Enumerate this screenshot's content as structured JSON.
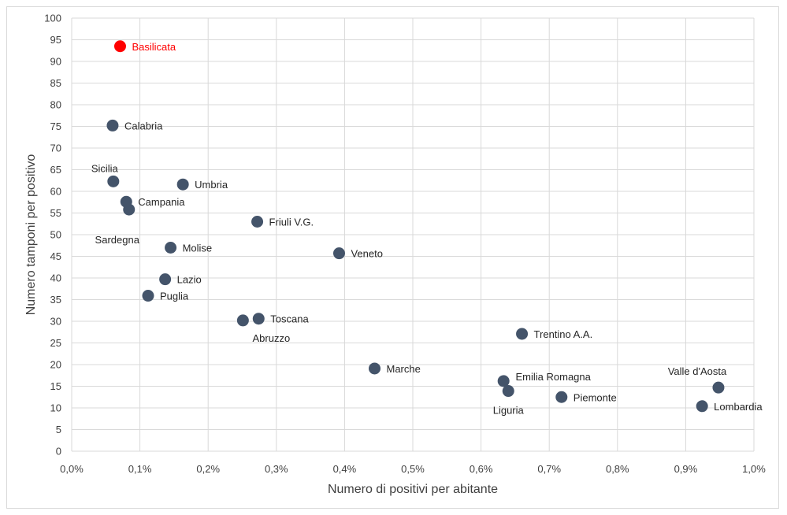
{
  "chart_data": {
    "type": "scatter",
    "title": "",
    "xlabel": "Numero di positivi per abitante",
    "ylabel": "Numero tamponi per positivo",
    "xlim": [
      0,
      1.0
    ],
    "ylim": [
      0,
      100
    ],
    "x_ticks": [
      0,
      0.1,
      0.2,
      0.3,
      0.4,
      0.5,
      0.6,
      0.7,
      0.8,
      0.9,
      1.0
    ],
    "x_tick_labels": [
      "0,0%",
      "0,1%",
      "0,2%",
      "0,3%",
      "0,4%",
      "0,5%",
      "0,6%",
      "0,7%",
      "0,8%",
      "0,9%",
      "1,0%"
    ],
    "y_ticks": [
      0,
      5,
      10,
      15,
      20,
      25,
      30,
      35,
      40,
      45,
      50,
      55,
      60,
      65,
      70,
      75,
      80,
      85,
      90,
      95,
      100
    ],
    "y_tick_labels": [
      "0",
      "5",
      "10",
      "15",
      "20",
      "25",
      "30",
      "35",
      "40",
      "45",
      "50",
      "55",
      "60",
      "65",
      "70",
      "75",
      "80",
      "85",
      "90",
      "95",
      "100"
    ],
    "grid": true,
    "colors": {
      "default": "#44546a",
      "highlight": "#ff0000",
      "grid": "#d9d9d9"
    },
    "points": [
      {
        "name": "Basilicata",
        "x": 0.071,
        "y": 93.5,
        "highlight": true,
        "label_pos": "right"
      },
      {
        "name": "Calabria",
        "x": 0.06,
        "y": 75.2,
        "highlight": false,
        "label_pos": "right"
      },
      {
        "name": "Sicilia",
        "x": 0.061,
        "y": 62.3,
        "highlight": false,
        "label_pos": "above-left"
      },
      {
        "name": "Umbria",
        "x": 0.163,
        "y": 61.6,
        "highlight": false,
        "label_pos": "right"
      },
      {
        "name": "Campania",
        "x": 0.08,
        "y": 57.6,
        "highlight": false,
        "label_pos": "right"
      },
      {
        "name": "Sardegna",
        "x": 0.084,
        "y": 55.8,
        "highlight": false,
        "label_pos": "below-left"
      },
      {
        "name": "Friuli V.G.",
        "x": 0.272,
        "y": 53.0,
        "highlight": false,
        "label_pos": "right"
      },
      {
        "name": "Molise",
        "x": 0.145,
        "y": 47.0,
        "highlight": false,
        "label_pos": "right"
      },
      {
        "name": "Veneto",
        "x": 0.392,
        "y": 45.7,
        "highlight": false,
        "label_pos": "right"
      },
      {
        "name": "Lazio",
        "x": 0.137,
        "y": 39.7,
        "highlight": false,
        "label_pos": "right"
      },
      {
        "name": "Puglia",
        "x": 0.112,
        "y": 35.9,
        "highlight": false,
        "label_pos": "right"
      },
      {
        "name": "Toscana",
        "x": 0.274,
        "y": 30.6,
        "highlight": false,
        "label_pos": "right"
      },
      {
        "name": "Abruzzo",
        "x": 0.251,
        "y": 30.2,
        "highlight": false,
        "label_pos": "below-right"
      },
      {
        "name": "Trentino A.A.",
        "x": 0.66,
        "y": 27.1,
        "highlight": false,
        "label_pos": "right"
      },
      {
        "name": "Marche",
        "x": 0.444,
        "y": 19.1,
        "highlight": false,
        "label_pos": "right"
      },
      {
        "name": "Emilia Romagna",
        "x": 0.633,
        "y": 16.2,
        "highlight": false,
        "label_pos": "above-right"
      },
      {
        "name": "Liguria",
        "x": 0.64,
        "y": 13.9,
        "highlight": false,
        "label_pos": "below"
      },
      {
        "name": "Piemonte",
        "x": 0.718,
        "y": 12.5,
        "highlight": false,
        "label_pos": "right"
      },
      {
        "name": "Valle d'Aosta",
        "x": 0.948,
        "y": 14.7,
        "highlight": false,
        "label_pos": "above-left"
      },
      {
        "name": "Lombardia",
        "x": 0.924,
        "y": 10.4,
        "highlight": false,
        "label_pos": "right"
      }
    ]
  }
}
